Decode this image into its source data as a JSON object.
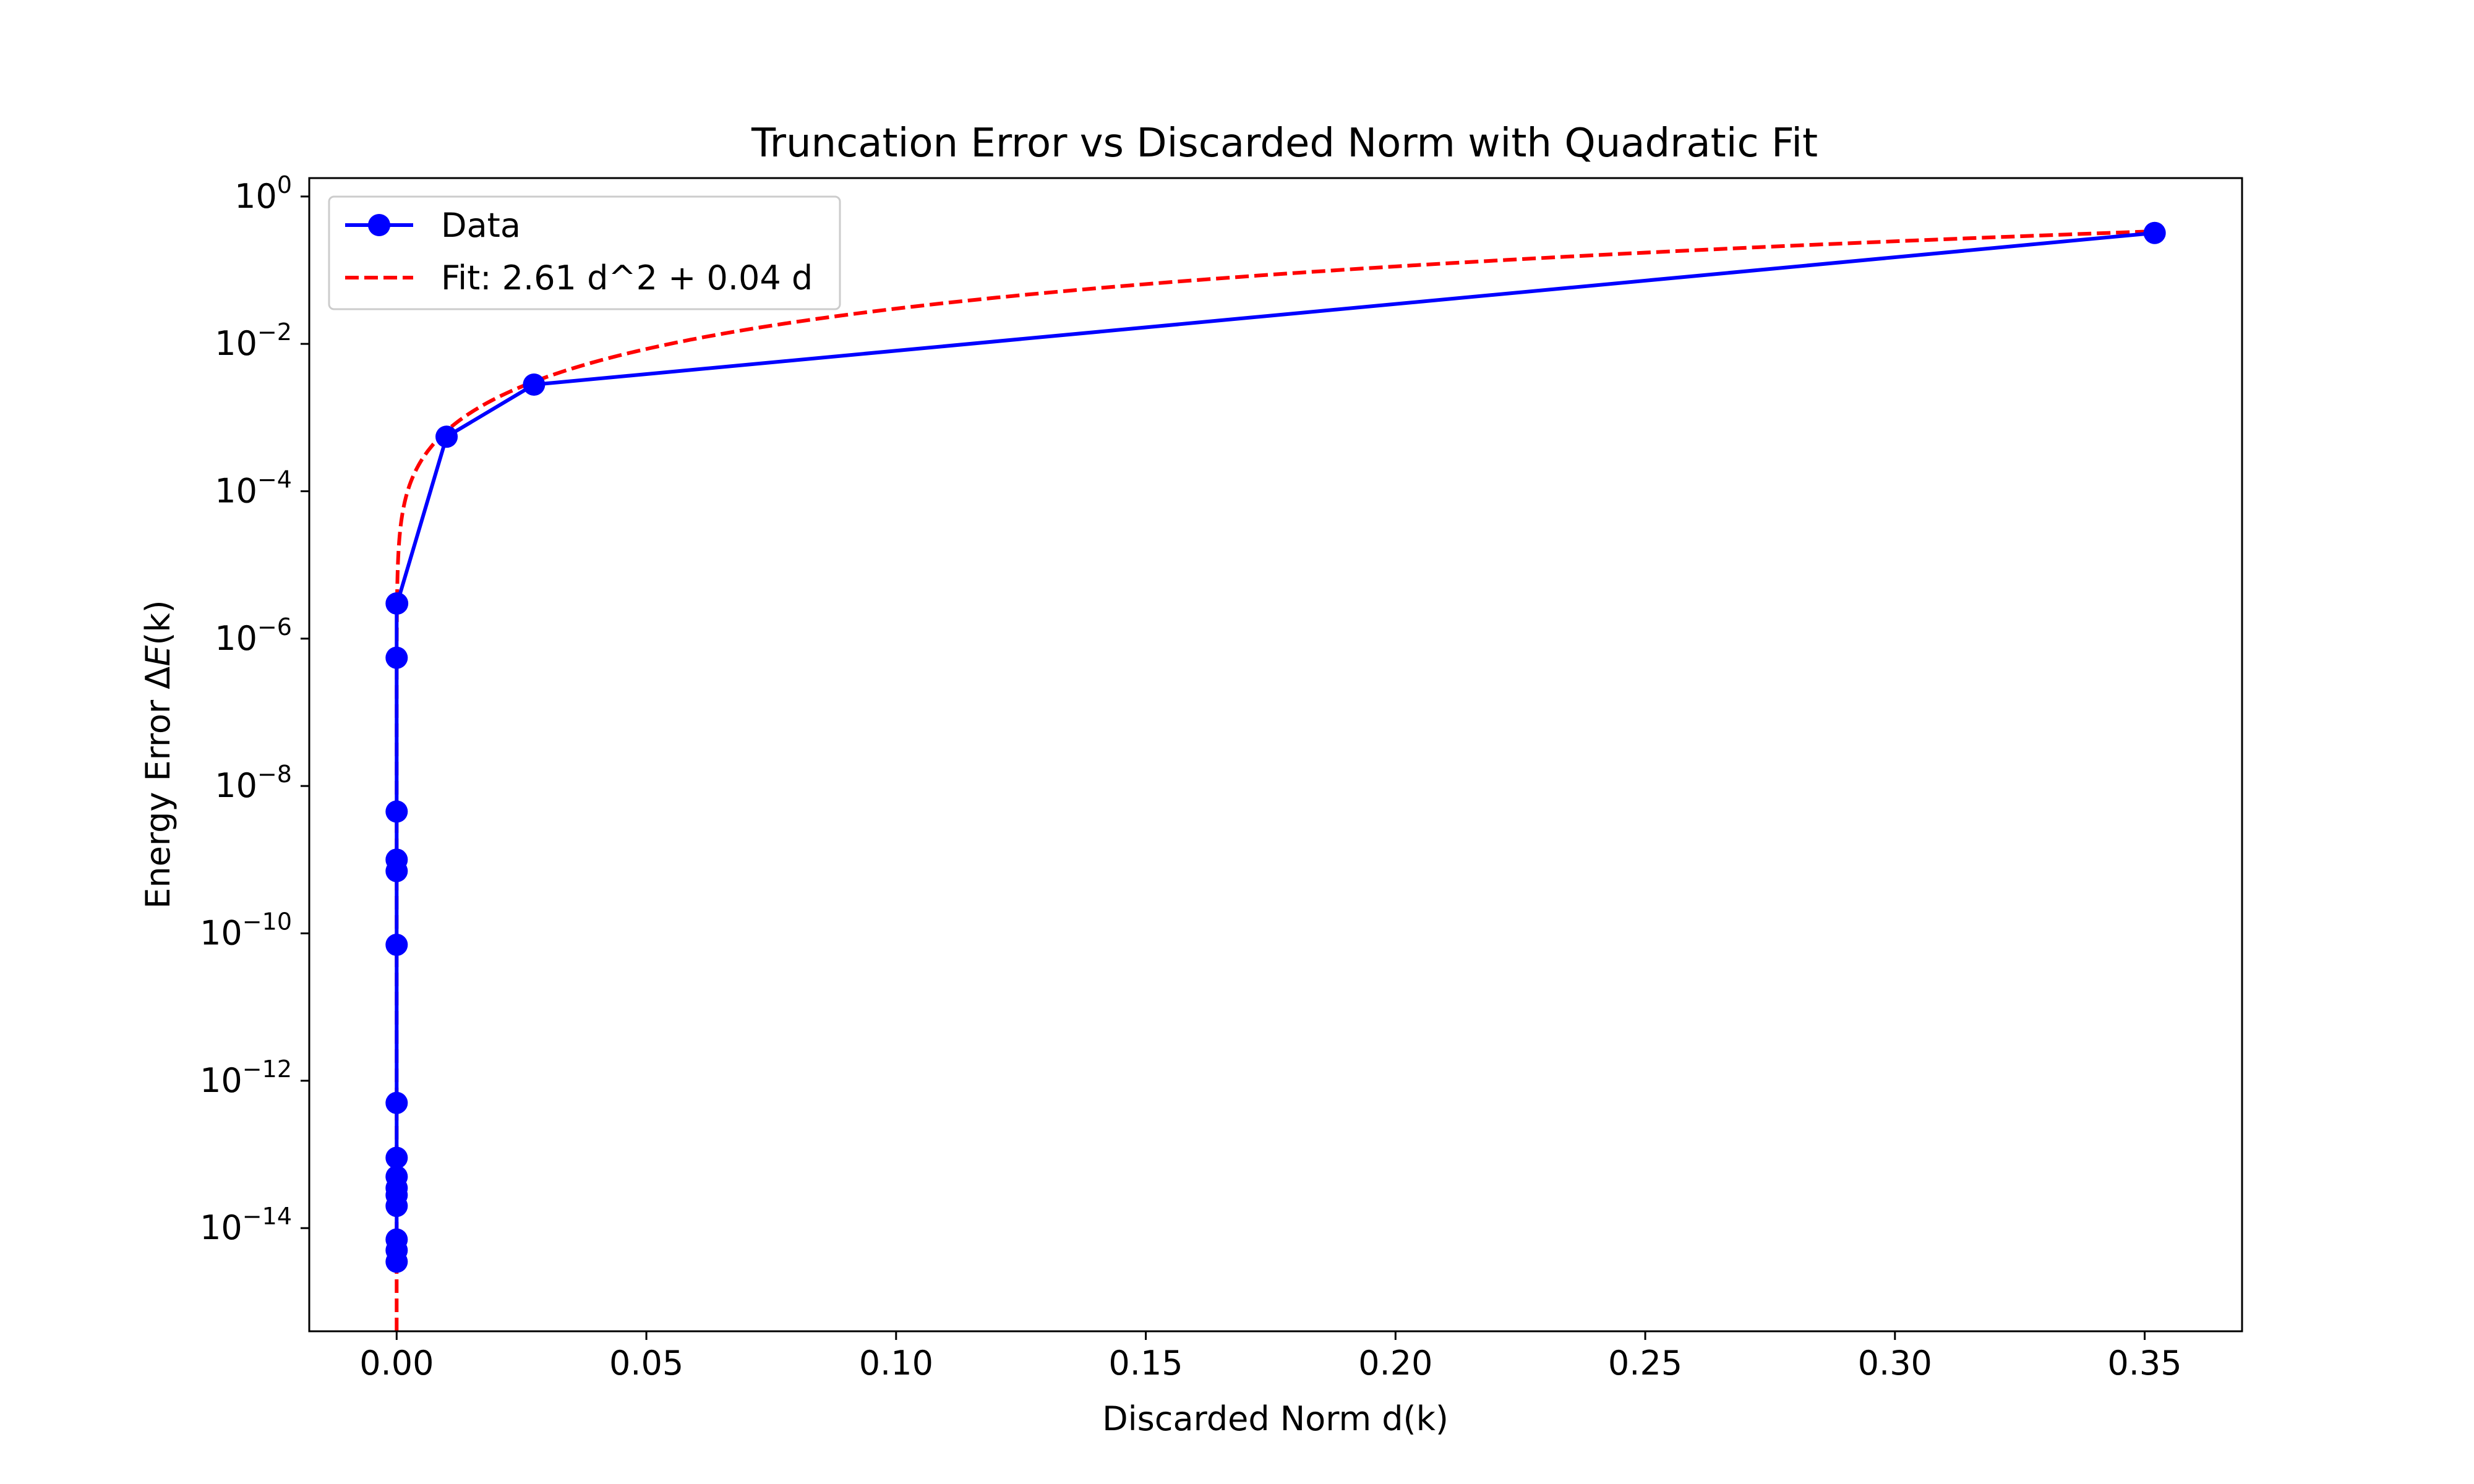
{
  "chart_data": {
    "type": "line",
    "title": "Truncation Error vs Discarded Norm with Quadratic Fit",
    "xlabel": "Discarded Norm d(k)",
    "ylabel_prefix": "Energy Error Δ",
    "ylabel_var": "E",
    "ylabel_suffix": "(k)",
    "xlim": [
      -0.0175,
      0.3695
    ],
    "ylim_log10": [
      -15.4,
      0.25
    ],
    "yscale": "log",
    "grid": false,
    "legend_position": "upper left",
    "x_ticks": [
      {
        "value": 0.0,
        "label": "0.00"
      },
      {
        "value": 0.05,
        "label": "0.05"
      },
      {
        "value": 0.1,
        "label": "0.10"
      },
      {
        "value": 0.15,
        "label": "0.15"
      },
      {
        "value": 0.2,
        "label": "0.20"
      },
      {
        "value": 0.25,
        "label": "0.25"
      },
      {
        "value": 0.3,
        "label": "0.30"
      },
      {
        "value": 0.35,
        "label": "0.35"
      }
    ],
    "y_ticks": [
      {
        "exp": 0,
        "base": "10",
        "sup": "0"
      },
      {
        "exp": -2,
        "base": "10",
        "sup": "−2"
      },
      {
        "exp": -4,
        "base": "10",
        "sup": "−4"
      },
      {
        "exp": -6,
        "base": "10",
        "sup": "−6"
      },
      {
        "exp": -8,
        "base": "10",
        "sup": "−8"
      },
      {
        "exp": -10,
        "base": "10",
        "sup": "−10"
      },
      {
        "exp": -12,
        "base": "10",
        "sup": "−12"
      },
      {
        "exp": -14,
        "base": "10",
        "sup": "−14"
      }
    ],
    "series": [
      {
        "name": "Data",
        "style": "solid-with-markers",
        "color": "#0000ff",
        "x": [
          0.0,
          0.0,
          0.0,
          0.0,
          0.0,
          0.0,
          0.0,
          0.0,
          0.0,
          0.0,
          0.0,
          0.0,
          0.0,
          0.0,
          0.0,
          0.0001,
          0.01,
          0.0275,
          0.352
        ],
        "y": [
          3.5e-15,
          5e-15,
          7e-15,
          2e-14,
          2.8e-14,
          3.5e-14,
          5e-14,
          9e-14,
          5e-13,
          7e-11,
          7e-10,
          1e-09,
          4.5e-09,
          5.5e-07,
          3e-06,
          3e-06,
          0.00055,
          0.0028,
          0.32
        ]
      },
      {
        "name": "Fit: 2.61 d^2 + 0.04 d",
        "style": "dashed",
        "color": "#ff0000",
        "coefficients": {
          "a": 2.61,
          "b": 0.04
        },
        "x_range": [
          1e-16,
          0.352
        ]
      }
    ]
  },
  "colors": {
    "data_line": "#0000ff",
    "fit_line": "#ff0000",
    "axes": "#000000",
    "legend_border": "#cccccc"
  }
}
